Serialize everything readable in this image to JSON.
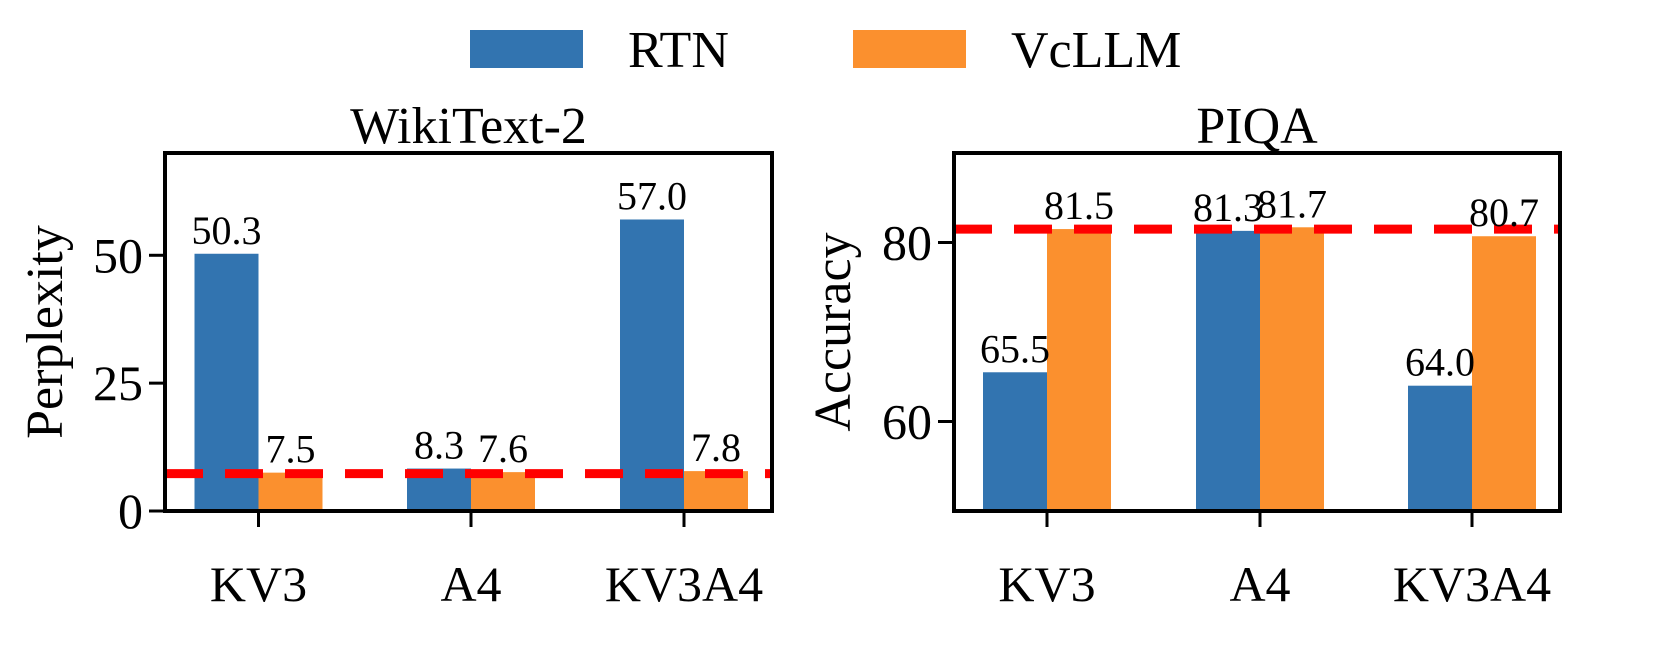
{
  "legend": {
    "placement": "top-center",
    "entries": [
      {
        "name": "RTN",
        "color": "#3274b0"
      },
      {
        "name": "VcLLM",
        "color": "#fb902e"
      }
    ]
  },
  "colors": {
    "baseline_line": "#ff0000"
  },
  "chart_data": [
    {
      "type": "bar",
      "title": "WikiText-2",
      "xlabel": "",
      "ylabel": "Perplexity",
      "categories": [
        "KV3",
        "A4",
        "KV3A4"
      ],
      "series": [
        {
          "name": "RTN",
          "values": [
            50.3,
            8.3,
            57.0
          ],
          "labels": [
            "50.3",
            "8.3",
            "57.0"
          ]
        },
        {
          "name": "VcLLM",
          "values": [
            7.5,
            7.6,
            7.8
          ],
          "labels": [
            "7.5",
            "7.6",
            "7.8"
          ]
        }
      ],
      "ylim": [
        0,
        70
      ],
      "yticks": [
        0,
        25,
        50
      ],
      "ytick_labels": [
        "0",
        "25",
        "50"
      ],
      "baseline": 7.3,
      "grid": false
    },
    {
      "type": "bar",
      "title": "PIQA",
      "xlabel": "",
      "ylabel": "Accuracy",
      "categories": [
        "KV3",
        "A4",
        "KV3A4"
      ],
      "series": [
        {
          "name": "RTN",
          "values": [
            65.5,
            81.3,
            64.0
          ],
          "labels": [
            "65.5",
            "81.3",
            "64.0"
          ]
        },
        {
          "name": "VcLLM",
          "values": [
            81.5,
            81.7,
            80.7
          ],
          "labels": [
            "81.5",
            "81.7",
            "80.7"
          ]
        }
      ],
      "ylim": [
        50,
        90
      ],
      "yticks": [
        60,
        80
      ],
      "ytick_labels": [
        "60",
        "80"
      ],
      "baseline": 81.5,
      "grid": false
    }
  ]
}
